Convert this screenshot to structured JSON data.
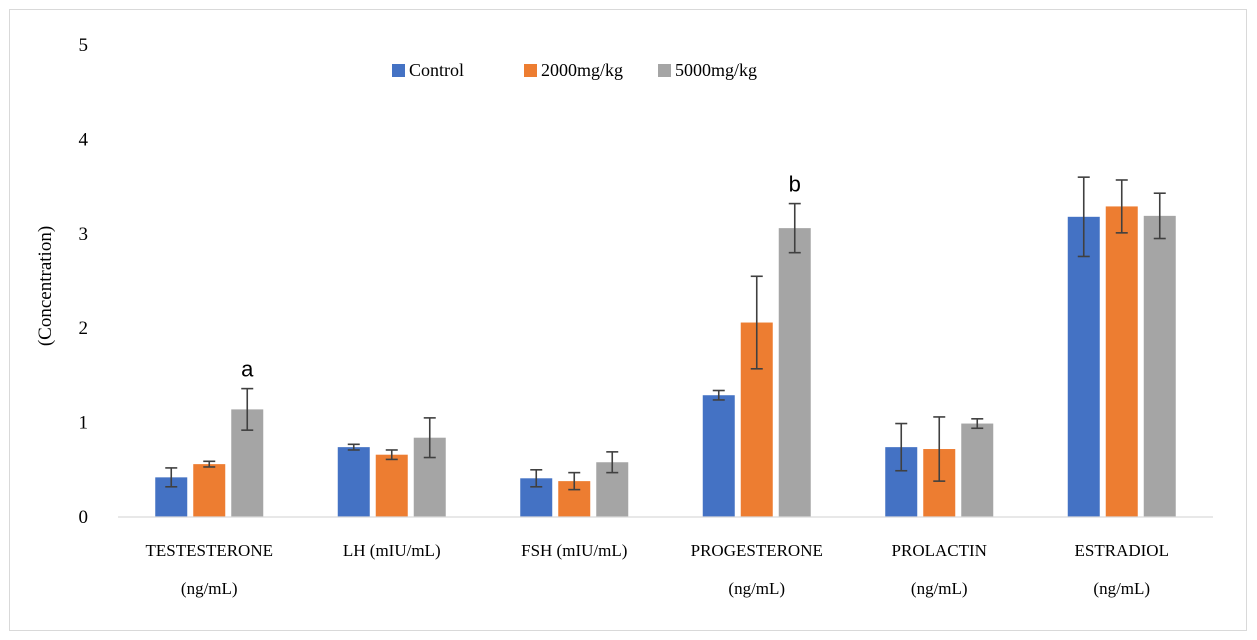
{
  "chart_data": {
    "type": "bar",
    "title": "",
    "ylabel": "(Concentration)",
    "xlabel": "",
    "ylim": [
      0,
      5
    ],
    "yticks": [
      "0",
      "1",
      "2",
      "3",
      "4",
      "5"
    ],
    "grid": false,
    "legend_position": "top",
    "categories": [
      {
        "line1": "TESTESTERONE",
        "line2": "(ng/mL)"
      },
      {
        "line1": "LH (mIU/mL)",
        "line2": ""
      },
      {
        "line1": "FSH (mIU/mL)",
        "line2": ""
      },
      {
        "line1": "PROGESTERONE",
        "line2": "(ng/mL)"
      },
      {
        "line1": "PROLACTIN",
        "line2": "(ng/mL)"
      },
      {
        "line1": "ESTRADIOL",
        "line2": "(ng/mL)"
      }
    ],
    "series": [
      {
        "name": "Control",
        "color": "#4472C4",
        "values": [
          0.42,
          0.74,
          0.41,
          1.29,
          0.74,
          3.18
        ],
        "errors": [
          0.1,
          0.03,
          0.09,
          0.05,
          0.25,
          0.42
        ]
      },
      {
        "name": "2000mg/kg",
        "color": "#ED7D31",
        "values": [
          0.56,
          0.66,
          0.38,
          2.06,
          0.72,
          3.29
        ],
        "errors": [
          0.03,
          0.05,
          0.09,
          0.49,
          0.34,
          0.28
        ]
      },
      {
        "name": "5000mg/kg",
        "color": "#A5A5A5",
        "values": [
          1.14,
          0.84,
          0.58,
          3.06,
          0.99,
          3.19
        ],
        "errors": [
          0.22,
          0.21,
          0.11,
          0.26,
          0.05,
          0.24
        ]
      }
    ],
    "annotations": [
      {
        "text": "a",
        "category_index": 0,
        "series_index": 2
      },
      {
        "text": "b",
        "category_index": 3,
        "series_index": 2
      }
    ]
  }
}
